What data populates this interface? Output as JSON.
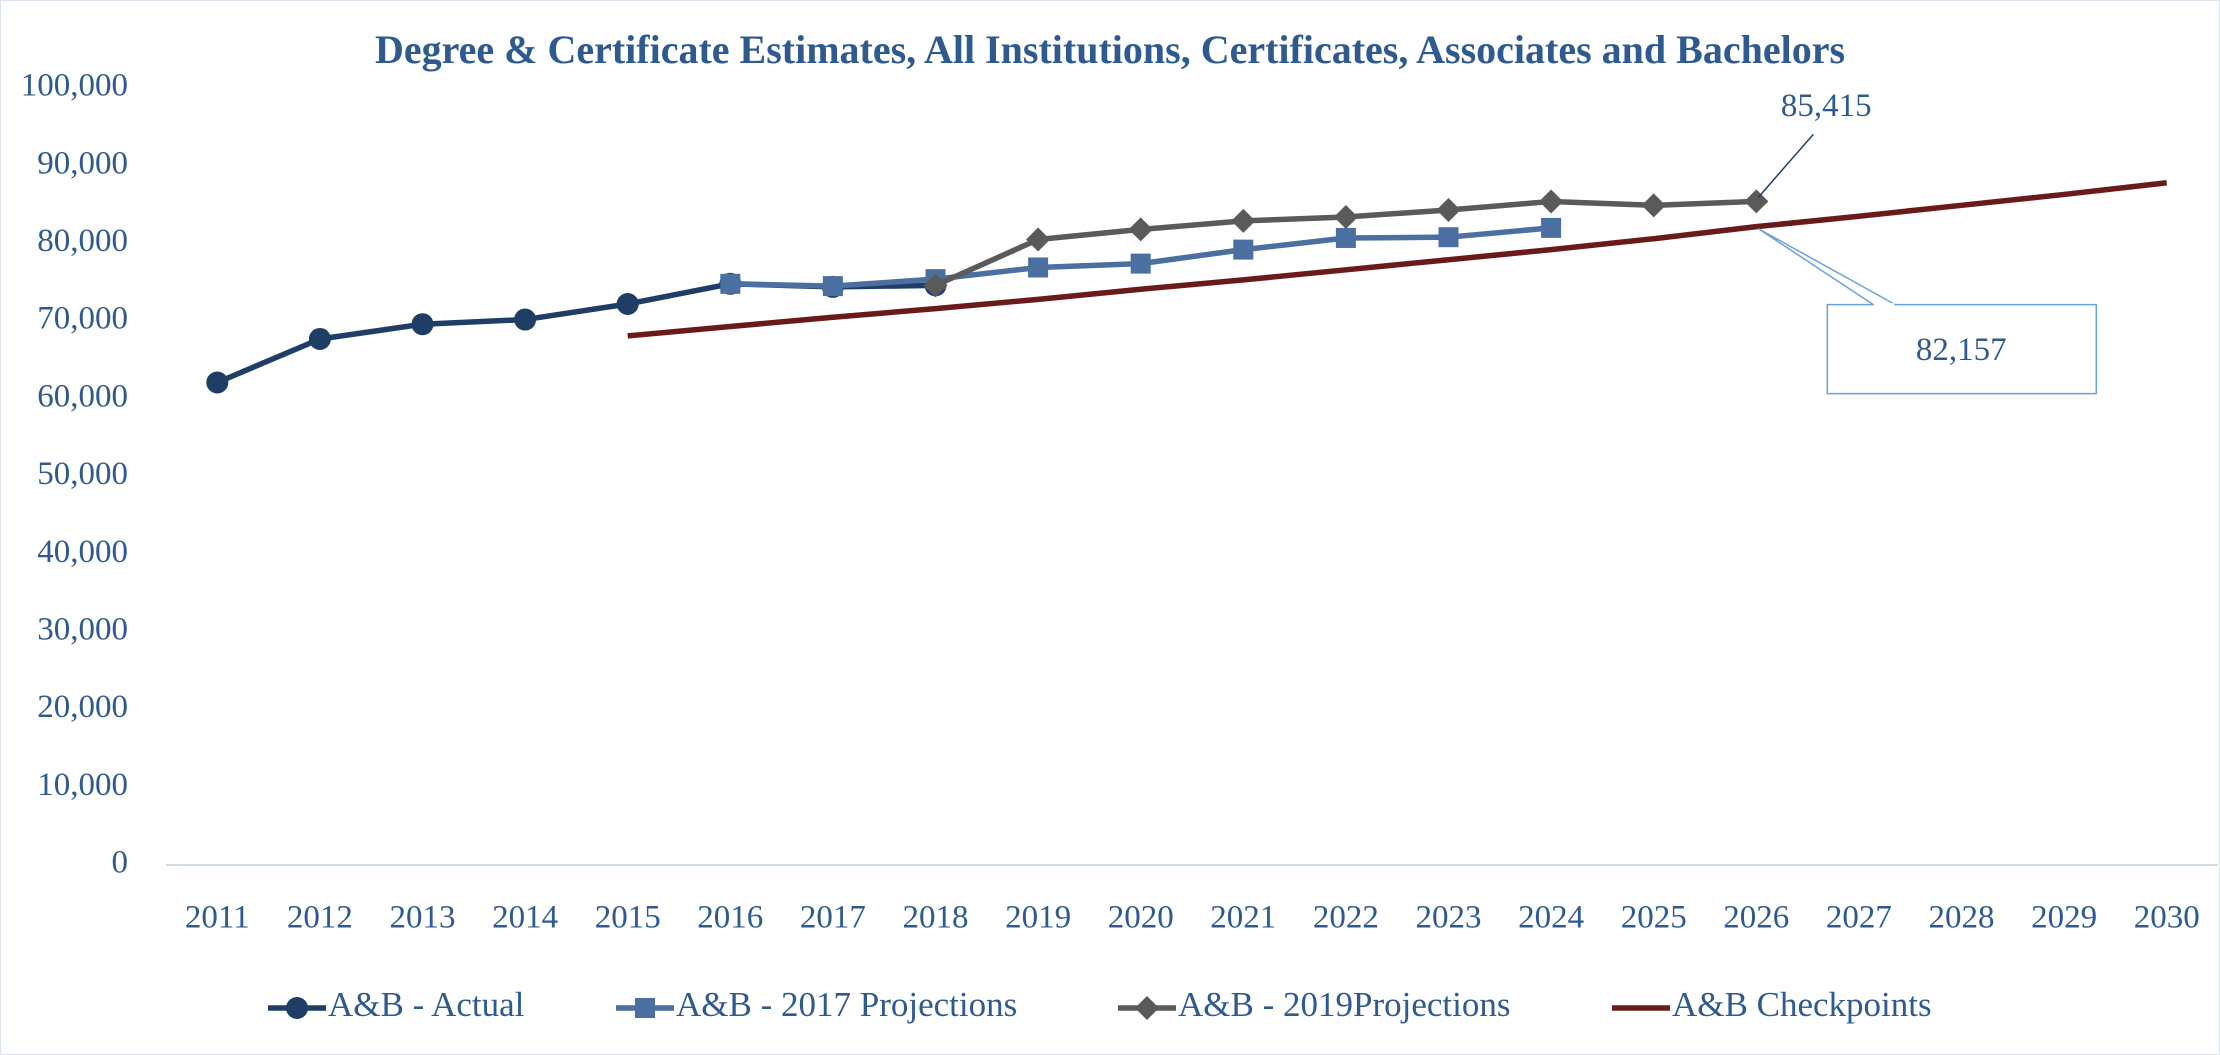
{
  "chart_data": {
    "type": "line",
    "title": "Degree & Certificate Estimates, All Institutions, Certificates, Associates and Bachelors",
    "categories": [
      "2011",
      "2012",
      "2013",
      "2014",
      "2015",
      "2016",
      "2017",
      "2018",
      "2019",
      "2020",
      "2021",
      "2022",
      "2023",
      "2024",
      "2025",
      "2026",
      "2027",
      "2028",
      "2029",
      "2030"
    ],
    "series": [
      {
        "name": "A&B - Actual",
        "color": "#1f3e66",
        "marker": "circle",
        "values": [
          62100,
          67700,
          69600,
          70200,
          72200,
          74800,
          74400,
          74600,
          null,
          null,
          null,
          null,
          null,
          null,
          null,
          null,
          null,
          null,
          null,
          null
        ]
      },
      {
        "name": "A&B - 2017 Projections",
        "color": "#4a6fa0",
        "marker": "square",
        "values": [
          null,
          null,
          null,
          null,
          null,
          74800,
          74500,
          75400,
          76900,
          77400,
          79200,
          80700,
          80800,
          82000,
          null,
          null,
          null,
          null,
          null,
          null
        ]
      },
      {
        "name": "A&B - 2019Projections",
        "color": "#5a5a5a",
        "marker": "diamond",
        "values": [
          null,
          null,
          null,
          null,
          null,
          null,
          null,
          74600,
          80500,
          81800,
          82900,
          83400,
          84300,
          85400,
          84900,
          85415,
          null,
          null,
          null,
          null
        ],
        "value_labels": [
          null,
          null,
          null,
          null,
          null,
          null,
          null,
          null,
          null,
          null,
          null,
          null,
          null,
          null,
          null,
          "85,415",
          null,
          null,
          null,
          null
        ]
      },
      {
        "name": "A&B Checkpoints",
        "color": "#6b1a1a",
        "marker": "none",
        "values": [
          null,
          null,
          null,
          null,
          68100,
          69300,
          70500,
          71600,
          72800,
          74100,
          75300,
          76600,
          77900,
          79200,
          80600,
          82157,
          83500,
          84900,
          86300,
          87800
        ],
        "value_labels": [
          null,
          null,
          null,
          null,
          null,
          null,
          null,
          null,
          null,
          null,
          null,
          null,
          null,
          null,
          null,
          "82,157",
          null,
          null,
          null,
          null
        ]
      }
    ],
    "ylim": [
      0,
      100000
    ],
    "yticks": [
      0,
      {
        "value": 10000,
        "label": "10,000"
      },
      {
        "value": 20000,
        "label": "20,000"
      },
      {
        "value": 30000,
        "label": "30,000"
      },
      {
        "value": 40000,
        "label": "40,000"
      },
      {
        "value": 50000,
        "label": "50,000"
      },
      {
        "value": 60000,
        "label": "60,000"
      },
      {
        "value": 70000,
        "label": "70,000"
      },
      {
        "value": 80000,
        "label": "80,000"
      },
      {
        "value": 90000,
        "label": "90,000"
      },
      {
        "value": 100000,
        "label": "100,000"
      }
    ],
    "grid": false,
    "legend": "bottom"
  }
}
